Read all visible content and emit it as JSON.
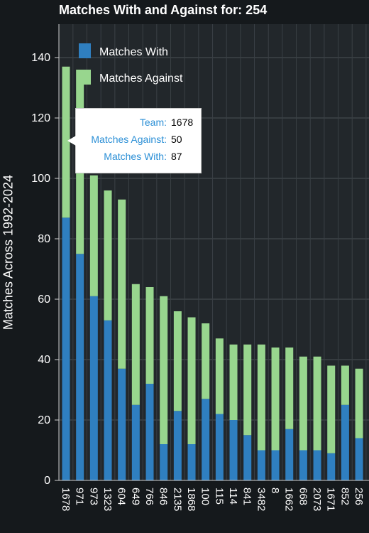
{
  "chart_data": {
    "type": "bar",
    "stacked": true,
    "title": "Matches With and Against for: 254",
    "ylabel": "Matches Across 1992-2024",
    "xlabel": "",
    "ylim": [
      0,
      150
    ],
    "yticks": [
      0,
      20,
      40,
      60,
      80,
      100,
      120,
      140
    ],
    "grid": true,
    "legend_position": "top-left",
    "categories": [
      "1678",
      "971",
      "973",
      "1323",
      "604",
      "649",
      "766",
      "846",
      "2135",
      "1868",
      "100",
      "115",
      "114",
      "841",
      "3482",
      "8",
      "1662",
      "668",
      "2073",
      "1671",
      "852",
      "256"
    ],
    "series": [
      {
        "name": "Matches With",
        "color": "#2f7fc0",
        "values": [
          87,
          75,
          61,
          53,
          37,
          25,
          32,
          12,
          23,
          12,
          27,
          22,
          20,
          15,
          10,
          10,
          17,
          10,
          10,
          9,
          25,
          14
        ]
      },
      {
        "name": "Matches Against",
        "color": "#98d68e",
        "values": [
          50,
          61,
          40,
          43,
          56,
          40,
          32,
          49,
          33,
          42,
          25,
          25,
          25,
          30,
          35,
          34,
          27,
          31,
          31,
          29,
          13,
          23
        ]
      }
    ],
    "tooltip": {
      "rows": [
        {
          "key": "Team:",
          "value": "1678"
        },
        {
          "key": "Matches Against:",
          "value": "50"
        },
        {
          "key": "Matches With:",
          "value": "87"
        }
      ]
    }
  }
}
